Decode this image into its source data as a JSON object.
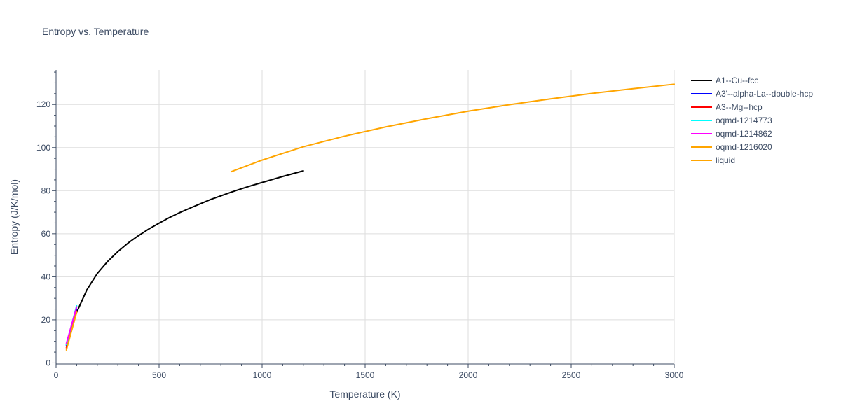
{
  "chart_data": {
    "type": "line",
    "title": "Entropy vs. Temperature",
    "xlabel": "Temperature (K)",
    "ylabel": "Entropy (J/K/mol)",
    "xlim": [
      0,
      3000
    ],
    "ylim": [
      -0.5,
      136
    ],
    "x_ticks": [
      0,
      500,
      1000,
      1500,
      2000,
      2500,
      3000
    ],
    "y_ticks": [
      0,
      20,
      40,
      60,
      80,
      100,
      120
    ],
    "grid": true,
    "legend_position": "right",
    "series": [
      {
        "name": "A1--Cu--fcc",
        "color": "#000000",
        "x": [
          100,
          150,
          200,
          250,
          300,
          350,
          400,
          450,
          500,
          550,
          600,
          650,
          700,
          750,
          800,
          850,
          900,
          950,
          1000,
          1050,
          1100,
          1150,
          1200
        ],
        "y": [
          23.5,
          34.0,
          41.5,
          47.1,
          51.7,
          55.7,
          59.1,
          62.2,
          64.9,
          67.5,
          69.8,
          71.9,
          73.9,
          75.9,
          77.6,
          79.3,
          80.9,
          82.4,
          83.8,
          85.2,
          86.6,
          87.9,
          89.2
        ]
      },
      {
        "name": "A3'--alpha-La--double-hcp",
        "color": "#0000ff",
        "x": [
          50,
          100
        ],
        "y": [
          8.2,
          25.0
        ]
      },
      {
        "name": "A3--Mg--hcp",
        "color": "#ff0000",
        "x": [
          50,
          100
        ],
        "y": [
          7.0,
          24.0
        ]
      },
      {
        "name": "oqmd-1214773",
        "color": "#00ffff",
        "x": [
          50,
          100
        ],
        "y": [
          8.5,
          26.5
        ]
      },
      {
        "name": "oqmd-1214862",
        "color": "#ff00ff",
        "x": [
          50,
          100
        ],
        "y": [
          9.0,
          26.0
        ]
      },
      {
        "name": "oqmd-1216020",
        "color": "#ffa500",
        "x": [
          50,
          100
        ],
        "y": [
          6.0,
          23.5
        ]
      },
      {
        "name": "liquid",
        "color": "#ffa500",
        "x": [
          850,
          1000,
          1200,
          1400,
          1600,
          1800,
          2000,
          2200,
          2400,
          2600,
          2800,
          3000
        ],
        "y": [
          88.8,
          94.2,
          100.4,
          105.3,
          109.6,
          113.4,
          116.9,
          119.9,
          122.6,
          125.1,
          127.3,
          129.4
        ]
      }
    ]
  }
}
